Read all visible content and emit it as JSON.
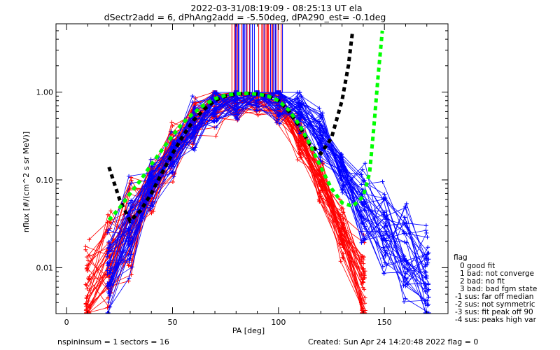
{
  "chart_data": {
    "type": "scatter",
    "title": "2022-03-31/08:19:09 - 08:25:13 UT ela",
    "subtitle": "dSectr2add = 6, dPhAng2add = -5.50deg, dPA290_est=  -0.1deg",
    "xlabel": "PA [deg]",
    "ylabel": "nflux [#/(cm^2 s sr MeV)]",
    "xlim": [
      -5,
      180
    ],
    "ylim": [
      0.003,
      6.0
    ],
    "yscale": "log",
    "x_ticks": [
      0,
      50,
      100,
      150
    ],
    "y_ticks": [
      {
        "value": 0.01,
        "label": "0.01"
      },
      {
        "value": 0.1,
        "label": "0.10"
      },
      {
        "value": 1.0,
        "label": "1.00"
      }
    ],
    "grid": false,
    "colors": {
      "red": "#ff0000",
      "blue": "#0000ff",
      "black": "#000000",
      "green": "#00ff00"
    },
    "series": [
      {
        "name": "red-sector-traces",
        "color": "#ff0000",
        "kind": "lines+plus",
        "x": [
          10,
          20,
          30,
          40,
          50,
          60,
          70,
          80,
          90,
          100,
          110,
          120,
          130,
          140
        ],
        "y_center": [
          0.006,
          0.012,
          0.03,
          0.09,
          0.22,
          0.45,
          0.7,
          0.85,
          0.88,
          0.7,
          0.32,
          0.1,
          0.025,
          0.006
        ],
        "count": 40
      },
      {
        "name": "blue-sector-traces",
        "color": "#0000ff",
        "kind": "lines+plus",
        "x": [
          20,
          30,
          40,
          50,
          60,
          70,
          80,
          90,
          100,
          110,
          120,
          130,
          140,
          150,
          160,
          170
        ],
        "y_center": [
          0.01,
          0.03,
          0.09,
          0.2,
          0.42,
          0.7,
          0.86,
          0.92,
          0.85,
          0.6,
          0.3,
          0.12,
          0.05,
          0.025,
          0.014,
          0.008
        ],
        "count": 40
      },
      {
        "name": "black-dashed-fit",
        "color": "#000000",
        "kind": "dashed",
        "x": [
          20,
          25,
          30,
          35,
          40,
          45,
          50,
          55,
          60,
          65,
          70,
          75,
          80,
          85,
          90,
          95,
          100,
          105,
          110,
          115,
          120,
          125,
          130,
          133,
          135
        ],
        "y": [
          0.14,
          0.06,
          0.034,
          0.045,
          0.07,
          0.12,
          0.2,
          0.32,
          0.48,
          0.64,
          0.8,
          0.9,
          0.95,
          0.97,
          0.95,
          0.9,
          0.8,
          0.6,
          0.4,
          0.25,
          0.2,
          0.3,
          0.8,
          2.0,
          5.0
        ]
      },
      {
        "name": "green-dashed-fit",
        "color": "#00ff00",
        "kind": "dashed",
        "x": [
          20,
          25,
          30,
          35,
          40,
          45,
          50,
          55,
          60,
          65,
          70,
          75,
          80,
          85,
          90,
          95,
          100,
          105,
          110,
          115,
          120,
          125,
          130,
          135,
          140,
          143,
          145,
          147,
          149
        ],
        "y": [
          0.035,
          0.048,
          0.07,
          0.1,
          0.15,
          0.22,
          0.32,
          0.45,
          0.58,
          0.72,
          0.84,
          0.92,
          0.96,
          0.97,
          0.95,
          0.9,
          0.8,
          0.62,
          0.42,
          0.25,
          0.14,
          0.08,
          0.055,
          0.05,
          0.065,
          0.12,
          0.4,
          1.5,
          5.0
        ]
      }
    ],
    "spikes": {
      "color_red": "#ff0000",
      "color_blue": "#0000ff",
      "x_min": 75,
      "x_max": 102,
      "y_from": 1.0,
      "y_to": 6.0,
      "count": 40
    }
  },
  "legend": {
    "title": "flag",
    "items": [
      "0 good fit",
      "1 bad: not converge",
      "2 bad: no fit",
      "3 bad: bad fgm state",
      "-1 sus: far off median",
      "-2 sus: not symmetric",
      "-3 sus: fit peak off 90",
      "-4 sus: peaks high var"
    ]
  },
  "footer": {
    "left": "nspininsum =  1   sectors = 16",
    "right": "Created: Sun Apr 24 14:20:48 2022   flag = 0"
  }
}
